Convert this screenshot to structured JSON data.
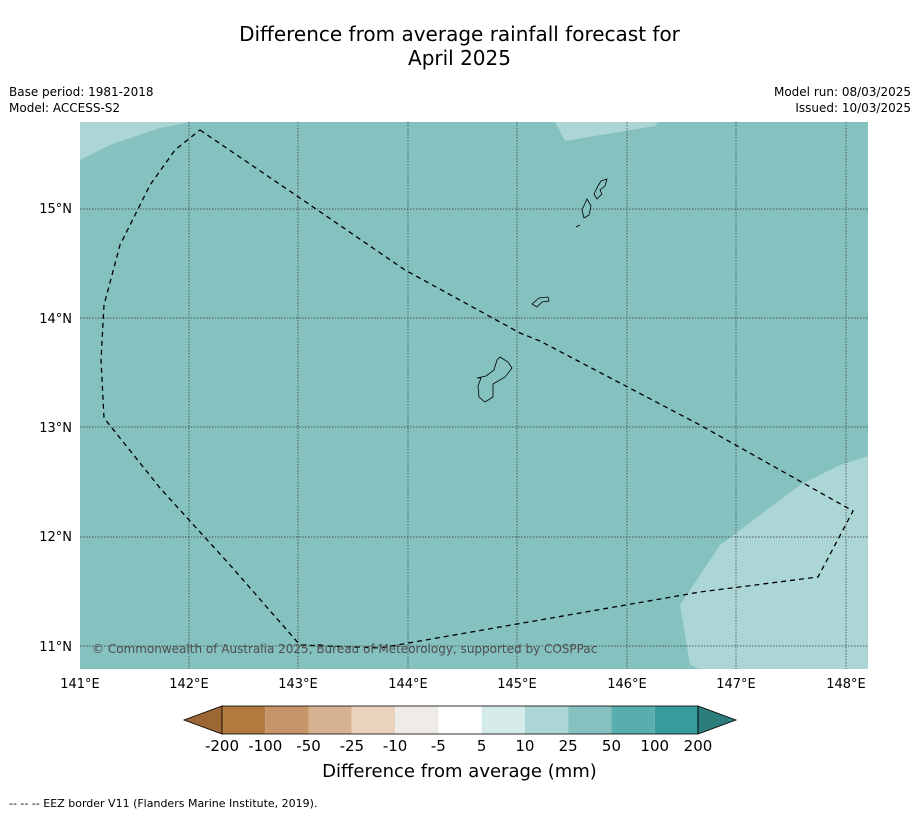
{
  "title": {
    "line1": "Difference from average rainfall forecast for",
    "line2": "April 2025"
  },
  "meta": {
    "base_period": "Base period: 1981-2018",
    "model": "Model: ACCESS-S2",
    "model_run": "Model run: 08/03/2025",
    "issued": "Issued: 10/03/2025"
  },
  "map": {
    "lon_ticks": [
      "141°E",
      "142°E",
      "143°E",
      "144°E",
      "145°E",
      "146°E",
      "147°E",
      "148°E"
    ],
    "lat_ticks": [
      "15°N",
      "14°N",
      "13°N",
      "12°N",
      "11°N"
    ],
    "lon_range": [
      141.0,
      148.2
    ],
    "lat_range": [
      10.8,
      15.8
    ],
    "copyright": "© Commonwealth of Australia 2025, Bureau of Meteorology, supported by COSPPac",
    "base_fill": "#84c1bf",
    "light_fill": "#acd6d5"
  },
  "colorbar": {
    "title": "Difference from average (mm)",
    "labels": [
      "-200",
      "-100",
      "-50",
      "-25",
      "-10",
      "-5",
      "5",
      "10",
      "25",
      "50",
      "100",
      "200"
    ],
    "colors": [
      "#9c6734",
      "#b27a3f",
      "#c39569",
      "#d6b291",
      "#e9d2be",
      "#efebe7",
      "#ffffff",
      "#d5ebe9",
      "#acd6d5",
      "#84c1bf",
      "#58aeac",
      "#369b9a",
      "#2b7c7b"
    ]
  },
  "footer": "--  --  -- EEZ border V11 (Flanders Marine Institute, 2019)."
}
